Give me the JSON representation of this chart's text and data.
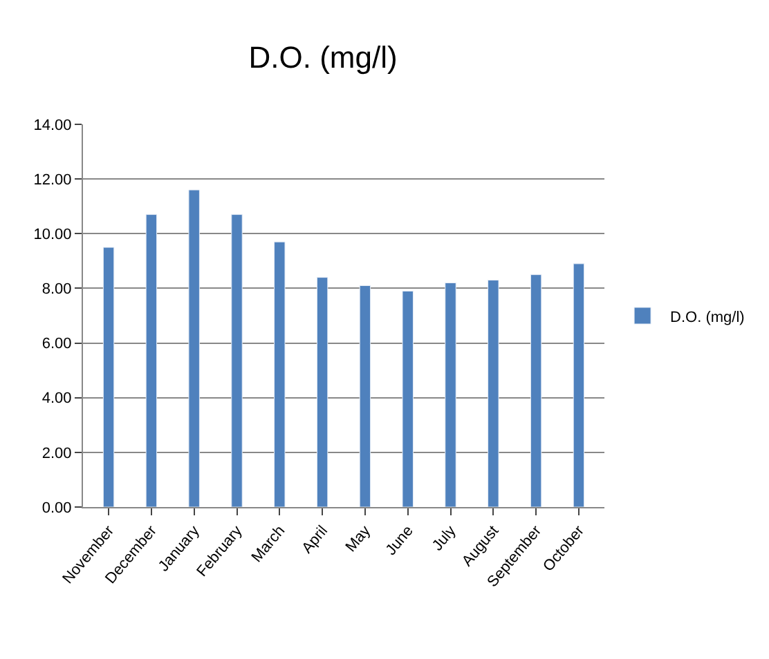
{
  "chart_data": {
    "type": "bar",
    "title": "D.O. (mg/l)",
    "categories": [
      "November",
      "December",
      "January",
      "February",
      "March",
      "April",
      "May",
      "June",
      "July",
      "August",
      "September",
      "October"
    ],
    "series": [
      {
        "name": "D.O. (mg/l)",
        "color": "#4f81bd",
        "values": [
          9.5,
          10.7,
          11.6,
          10.7,
          9.7,
          8.4,
          8.1,
          7.9,
          8.2,
          8.3,
          8.5,
          8.9
        ]
      }
    ],
    "ylim": [
      0,
      14
    ],
    "yticks": [
      {
        "value": 0,
        "label": "0.00"
      },
      {
        "value": 2,
        "label": "2.00"
      },
      {
        "value": 4,
        "label": "4.00"
      },
      {
        "value": 6,
        "label": "6.00"
      },
      {
        "value": 8,
        "label": "8.00"
      },
      {
        "value": 10,
        "label": "10.00"
      },
      {
        "value": 12,
        "label": "12.00"
      },
      {
        "value": 14,
        "label": "14.00"
      }
    ],
    "grid": "y",
    "legend": "right"
  }
}
